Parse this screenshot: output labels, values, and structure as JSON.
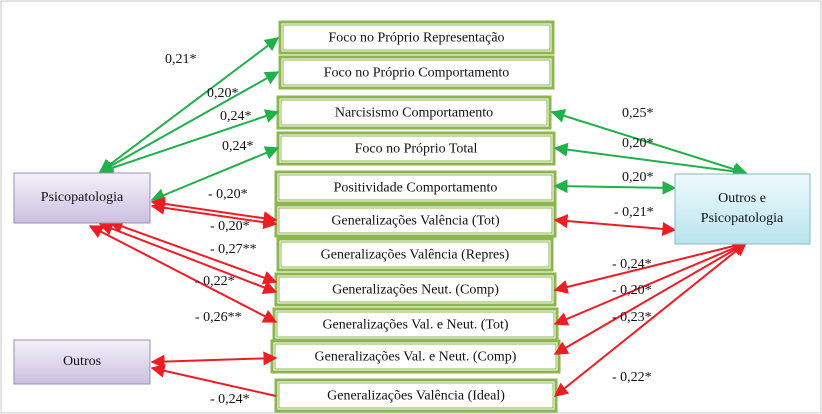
{
  "nodes": {
    "left": [
      "Psicopatologia",
      "Outros"
    ],
    "right": [
      "Outros e",
      "Psicopatologia"
    ],
    "middle": [
      "Foco no Próprio Representação",
      "Foco no Próprio Comportamento",
      "Narcisismo Comportamento",
      "Foco no Próprio Total",
      "Positividade Comportamento",
      "Generalizações Valência (Tot)",
      "Generalizações Valência (Repres)",
      "Generalizações Neut. (Comp)",
      "Generalizações Val. e Neut. (Tot)",
      "Generalizações Val. e Neut. (Comp)",
      "Generalizações Valência (Ideal)"
    ]
  },
  "edge_labels": {
    "left": [
      "0,21*",
      "0,20*",
      "0,24*",
      "0,24*",
      "- 0,20*",
      "- 0,20*",
      "- 0,27**",
      "- 0,22*",
      "- 0,26**",
      "- 0,24*"
    ],
    "right": [
      "0,25*",
      "0,20*",
      "0,20*",
      "- 0,21*",
      "- 0,24*",
      "- 0,20*",
      "- 0,23*",
      "- 0,22*"
    ]
  }
}
